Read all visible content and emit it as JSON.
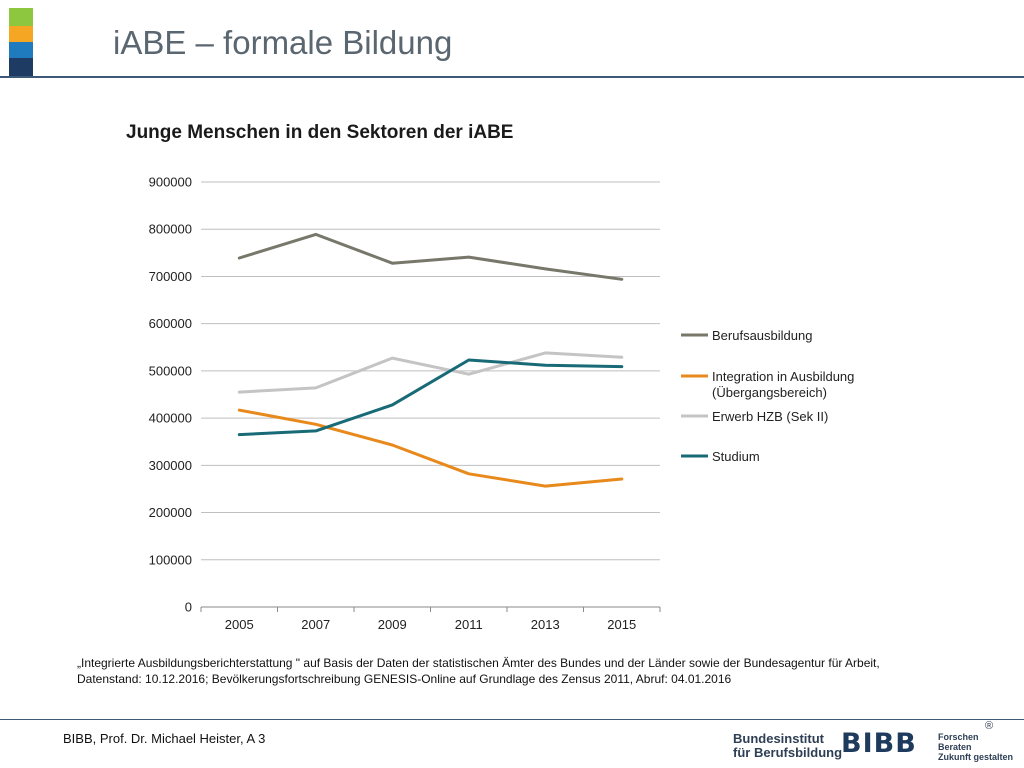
{
  "slide": {
    "title": "iABE – formale Bildung",
    "colors": {
      "stripe": [
        "#8dc63f",
        "#f5a623",
        "#1f7bbd",
        "#1d3b63"
      ],
      "rule": "#3c5a78"
    }
  },
  "chart_data": {
    "type": "line",
    "title": "Junge Menschen in den Sektoren der iABE",
    "xlabel": "",
    "ylabel": "",
    "categories": [
      "2005",
      "2007",
      "2009",
      "2011",
      "2013",
      "2015"
    ],
    "ylim": [
      0,
      900000
    ],
    "yticks": [
      "0",
      "100000",
      "200000",
      "300000",
      "400000",
      "500000",
      "600000",
      "700000",
      "800000",
      "900000"
    ],
    "grid": true,
    "legend_position": "right",
    "series": [
      {
        "name": "Berufsausbildung",
        "color": "#77776a",
        "values": [
          739000,
          789000,
          728000,
          741000,
          716000,
          694000
        ]
      },
      {
        "name": "Integration in Ausbildung (Übergangsbereich)",
        "legend_lines": [
          "Integration in Ausbildung",
          "(Übergangsbereich)"
        ],
        "color": "#e8891c",
        "values": [
          417000,
          387000,
          343000,
          282000,
          256000,
          271000
        ]
      },
      {
        "name": "Erwerb HZB (Sek II)",
        "color": "#c4c4c4",
        "values": [
          455000,
          464000,
          527000,
          493000,
          538000,
          529000
        ]
      },
      {
        "name": "Studium",
        "color": "#176a76",
        "values": [
          365000,
          373000,
          428000,
          523000,
          512000,
          509000
        ]
      }
    ]
  },
  "source": {
    "text": "„Integrierte Ausbildungsberichterstattung \" auf Basis der Daten der statistischen Ämter des Bundes und der Länder sowie der Bundesagentur für Arbeit, Datenstand: 10.12.2016; Bevölkerungsfortschreibung GENESIS-Online auf Grundlage des Zensus 2011, Abruf: 04.01.2016"
  },
  "footer": {
    "text": "BIBB, Prof. Dr. Michael Heister, A 3",
    "logo_name_lines": [
      "Bundesinstitut",
      "für Berufsbildung"
    ],
    "logo_mark": "BIBB",
    "slogan_lines": [
      "Forschen",
      "Beraten",
      "Zukunft gestalten"
    ],
    "registered": "®"
  }
}
